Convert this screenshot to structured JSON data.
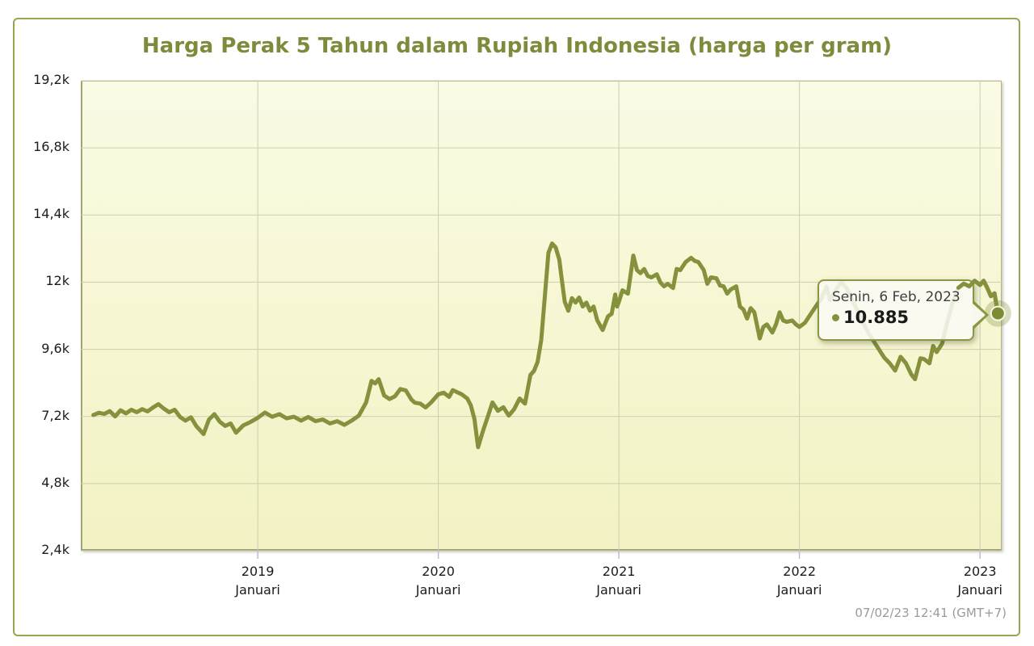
{
  "title": "Harga Perak 5 Tahun dalam Rupiah Indonesia (harga per gram)",
  "timestamp": "07/02/23 12:41 (GMT+7)",
  "tooltip": {
    "date": "Senin, 6 Feb, 2023",
    "value": "10.885"
  },
  "colors": {
    "line": "#85913c",
    "title": "#7d8b3a",
    "grid": "#cdcdb0",
    "axis_tick": "#b7c1d6",
    "widget_border": "#9ba351",
    "tooltip_border": "#8b9740",
    "marker_fill": "#7e8b35",
    "marker_halo": "rgba(133,145,60,0.32)",
    "timestamp_text": "#9a9a9a"
  },
  "chart_data": {
    "type": "line",
    "title": "Harga Perak 5 Tahun dalam Rupiah Indonesia (harga per gram)",
    "xlabel": "",
    "ylabel": "",
    "xlim": [
      2018.02,
      2023.12
    ],
    "ylim": [
      2400,
      19200
    ],
    "grid": true,
    "legend_position": "none",
    "yticks": [
      {
        "label": "19,2k",
        "value": 19200
      },
      {
        "label": "16,8k",
        "value": 16800
      },
      {
        "label": "14,4k",
        "value": 14400
      },
      {
        "label": "12k",
        "value": 12000
      },
      {
        "label": "9,6k",
        "value": 9600
      },
      {
        "label": "7,2k",
        "value": 7200
      },
      {
        "label": "4,8k",
        "value": 4800
      },
      {
        "label": "2,4k",
        "value": 2400
      }
    ],
    "xticks": [
      {
        "year": "2019",
        "month": "Januari",
        "value": 2019
      },
      {
        "year": "2020",
        "month": "Januari",
        "value": 2020
      },
      {
        "year": "2021",
        "month": "Januari",
        "value": 2021
      },
      {
        "year": "2022",
        "month": "Januari",
        "value": 2022
      },
      {
        "year": "2023",
        "month": "Januari",
        "value": 2023
      }
    ],
    "highlighted_point": {
      "x": 2023.099,
      "y": 10885,
      "date": "Senin, 6 Feb, 2023",
      "display_value": "10.885"
    },
    "series": [
      {
        "points": [
          [
            2018.09,
            7250
          ],
          [
            2018.12,
            7330
          ],
          [
            2018.15,
            7290
          ],
          [
            2018.18,
            7390
          ],
          [
            2018.21,
            7200
          ],
          [
            2018.24,
            7420
          ],
          [
            2018.27,
            7310
          ],
          [
            2018.3,
            7440
          ],
          [
            2018.33,
            7350
          ],
          [
            2018.36,
            7460
          ],
          [
            2018.39,
            7380
          ],
          [
            2018.42,
            7520
          ],
          [
            2018.45,
            7640
          ],
          [
            2018.48,
            7480
          ],
          [
            2018.51,
            7350
          ],
          [
            2018.54,
            7440
          ],
          [
            2018.57,
            7180
          ],
          [
            2018.6,
            7050
          ],
          [
            2018.63,
            7170
          ],
          [
            2018.66,
            6850
          ],
          [
            2018.7,
            6570
          ],
          [
            2018.73,
            7090
          ],
          [
            2018.76,
            7280
          ],
          [
            2018.79,
            7010
          ],
          [
            2018.82,
            6860
          ],
          [
            2018.85,
            6950
          ],
          [
            2018.88,
            6620
          ],
          [
            2018.92,
            6880
          ],
          [
            2018.96,
            7000
          ],
          [
            2019.0,
            7150
          ],
          [
            2019.04,
            7340
          ],
          [
            2019.08,
            7190
          ],
          [
            2019.12,
            7280
          ],
          [
            2019.16,
            7130
          ],
          [
            2019.2,
            7190
          ],
          [
            2019.24,
            7050
          ],
          [
            2019.28,
            7180
          ],
          [
            2019.32,
            7030
          ],
          [
            2019.36,
            7090
          ],
          [
            2019.4,
            6950
          ],
          [
            2019.44,
            7030
          ],
          [
            2019.48,
            6900
          ],
          [
            2019.52,
            7050
          ],
          [
            2019.56,
            7230
          ],
          [
            2019.6,
            7700
          ],
          [
            2019.63,
            8470
          ],
          [
            2019.65,
            8380
          ],
          [
            2019.67,
            8530
          ],
          [
            2019.7,
            7950
          ],
          [
            2019.73,
            7820
          ],
          [
            2019.76,
            7920
          ],
          [
            2019.79,
            8180
          ],
          [
            2019.82,
            8130
          ],
          [
            2019.85,
            7810
          ],
          [
            2019.87,
            7690
          ],
          [
            2019.9,
            7660
          ],
          [
            2019.93,
            7520
          ],
          [
            2019.96,
            7700
          ],
          [
            2020.0,
            7990
          ],
          [
            2020.03,
            8050
          ],
          [
            2020.06,
            7900
          ],
          [
            2020.08,
            8140
          ],
          [
            2020.11,
            8050
          ],
          [
            2020.13,
            7990
          ],
          [
            2020.16,
            7840
          ],
          [
            2020.18,
            7600
          ],
          [
            2020.2,
            7110
          ],
          [
            2020.22,
            6100
          ],
          [
            2020.25,
            6740
          ],
          [
            2020.27,
            7110
          ],
          [
            2020.3,
            7700
          ],
          [
            2020.33,
            7400
          ],
          [
            2020.36,
            7530
          ],
          [
            2020.39,
            7230
          ],
          [
            2020.42,
            7460
          ],
          [
            2020.45,
            7840
          ],
          [
            2020.48,
            7660
          ],
          [
            2020.51,
            8680
          ],
          [
            2020.53,
            8830
          ],
          [
            2020.55,
            9150
          ],
          [
            2020.57,
            9930
          ],
          [
            2020.59,
            11500
          ],
          [
            2020.61,
            13050
          ],
          [
            2020.63,
            13380
          ],
          [
            2020.65,
            13240
          ],
          [
            2020.67,
            12800
          ],
          [
            2020.68,
            12280
          ],
          [
            2020.7,
            11300
          ],
          [
            2020.72,
            10980
          ],
          [
            2020.74,
            11430
          ],
          [
            2020.76,
            11270
          ],
          [
            2020.78,
            11450
          ],
          [
            2020.8,
            11130
          ],
          [
            2020.82,
            11270
          ],
          [
            2020.84,
            10980
          ],
          [
            2020.86,
            11130
          ],
          [
            2020.88,
            10640
          ],
          [
            2020.91,
            10290
          ],
          [
            2020.94,
            10780
          ],
          [
            2020.96,
            10870
          ],
          [
            2020.98,
            11560
          ],
          [
            2020.99,
            11130
          ],
          [
            2021.0,
            11300
          ],
          [
            2021.02,
            11710
          ],
          [
            2021.05,
            11590
          ],
          [
            2021.08,
            12950
          ],
          [
            2021.1,
            12430
          ],
          [
            2021.12,
            12320
          ],
          [
            2021.14,
            12470
          ],
          [
            2021.16,
            12220
          ],
          [
            2021.18,
            12170
          ],
          [
            2021.21,
            12280
          ],
          [
            2021.23,
            11990
          ],
          [
            2021.25,
            11850
          ],
          [
            2021.27,
            11940
          ],
          [
            2021.3,
            11790
          ],
          [
            2021.32,
            12470
          ],
          [
            2021.34,
            12430
          ],
          [
            2021.37,
            12720
          ],
          [
            2021.4,
            12870
          ],
          [
            2021.42,
            12760
          ],
          [
            2021.44,
            12720
          ],
          [
            2021.47,
            12430
          ],
          [
            2021.49,
            11940
          ],
          [
            2021.51,
            12170
          ],
          [
            2021.54,
            12140
          ],
          [
            2021.56,
            11880
          ],
          [
            2021.58,
            11850
          ],
          [
            2021.6,
            11590
          ],
          [
            2021.62,
            11740
          ],
          [
            2021.65,
            11850
          ],
          [
            2021.67,
            11130
          ],
          [
            2021.69,
            11020
          ],
          [
            2021.71,
            10700
          ],
          [
            2021.73,
            11070
          ],
          [
            2021.75,
            10920
          ],
          [
            2021.78,
            9990
          ],
          [
            2021.8,
            10400
          ],
          [
            2021.82,
            10490
          ],
          [
            2021.85,
            10200
          ],
          [
            2021.87,
            10490
          ],
          [
            2021.89,
            10920
          ],
          [
            2021.91,
            10630
          ],
          [
            2021.93,
            10580
          ],
          [
            2021.96,
            10630
          ],
          [
            2021.98,
            10490
          ],
          [
            2022.0,
            10400
          ],
          [
            2022.03,
            10550
          ],
          [
            2022.06,
            10840
          ],
          [
            2022.09,
            11130
          ],
          [
            2022.12,
            11400
          ],
          [
            2022.15,
            11840
          ],
          [
            2022.17,
            11360
          ],
          [
            2022.2,
            11700
          ],
          [
            2022.23,
            12000
          ],
          [
            2022.26,
            11800
          ],
          [
            2022.29,
            11400
          ],
          [
            2022.32,
            11000
          ],
          [
            2022.35,
            10600
          ],
          [
            2022.38,
            10200
          ],
          [
            2022.41,
            9900
          ],
          [
            2022.44,
            9600
          ],
          [
            2022.47,
            9300
          ],
          [
            2022.5,
            9100
          ],
          [
            2022.53,
            8840
          ],
          [
            2022.56,
            9330
          ],
          [
            2022.59,
            9100
          ],
          [
            2022.62,
            8700
          ],
          [
            2022.64,
            8530
          ],
          [
            2022.67,
            9280
          ],
          [
            2022.69,
            9250
          ],
          [
            2022.72,
            9100
          ],
          [
            2022.74,
            9720
          ],
          [
            2022.76,
            9500
          ],
          [
            2022.79,
            9800
          ],
          [
            2022.82,
            10600
          ],
          [
            2022.85,
            11300
          ],
          [
            2022.88,
            11800
          ],
          [
            2022.91,
            11950
          ],
          [
            2022.94,
            11850
          ],
          [
            2022.97,
            12050
          ],
          [
            2023.0,
            11900
          ],
          [
            2023.02,
            12050
          ],
          [
            2023.04,
            11800
          ],
          [
            2023.06,
            11500
          ],
          [
            2023.08,
            11600
          ],
          [
            2023.099,
            10885
          ]
        ]
      }
    ]
  }
}
